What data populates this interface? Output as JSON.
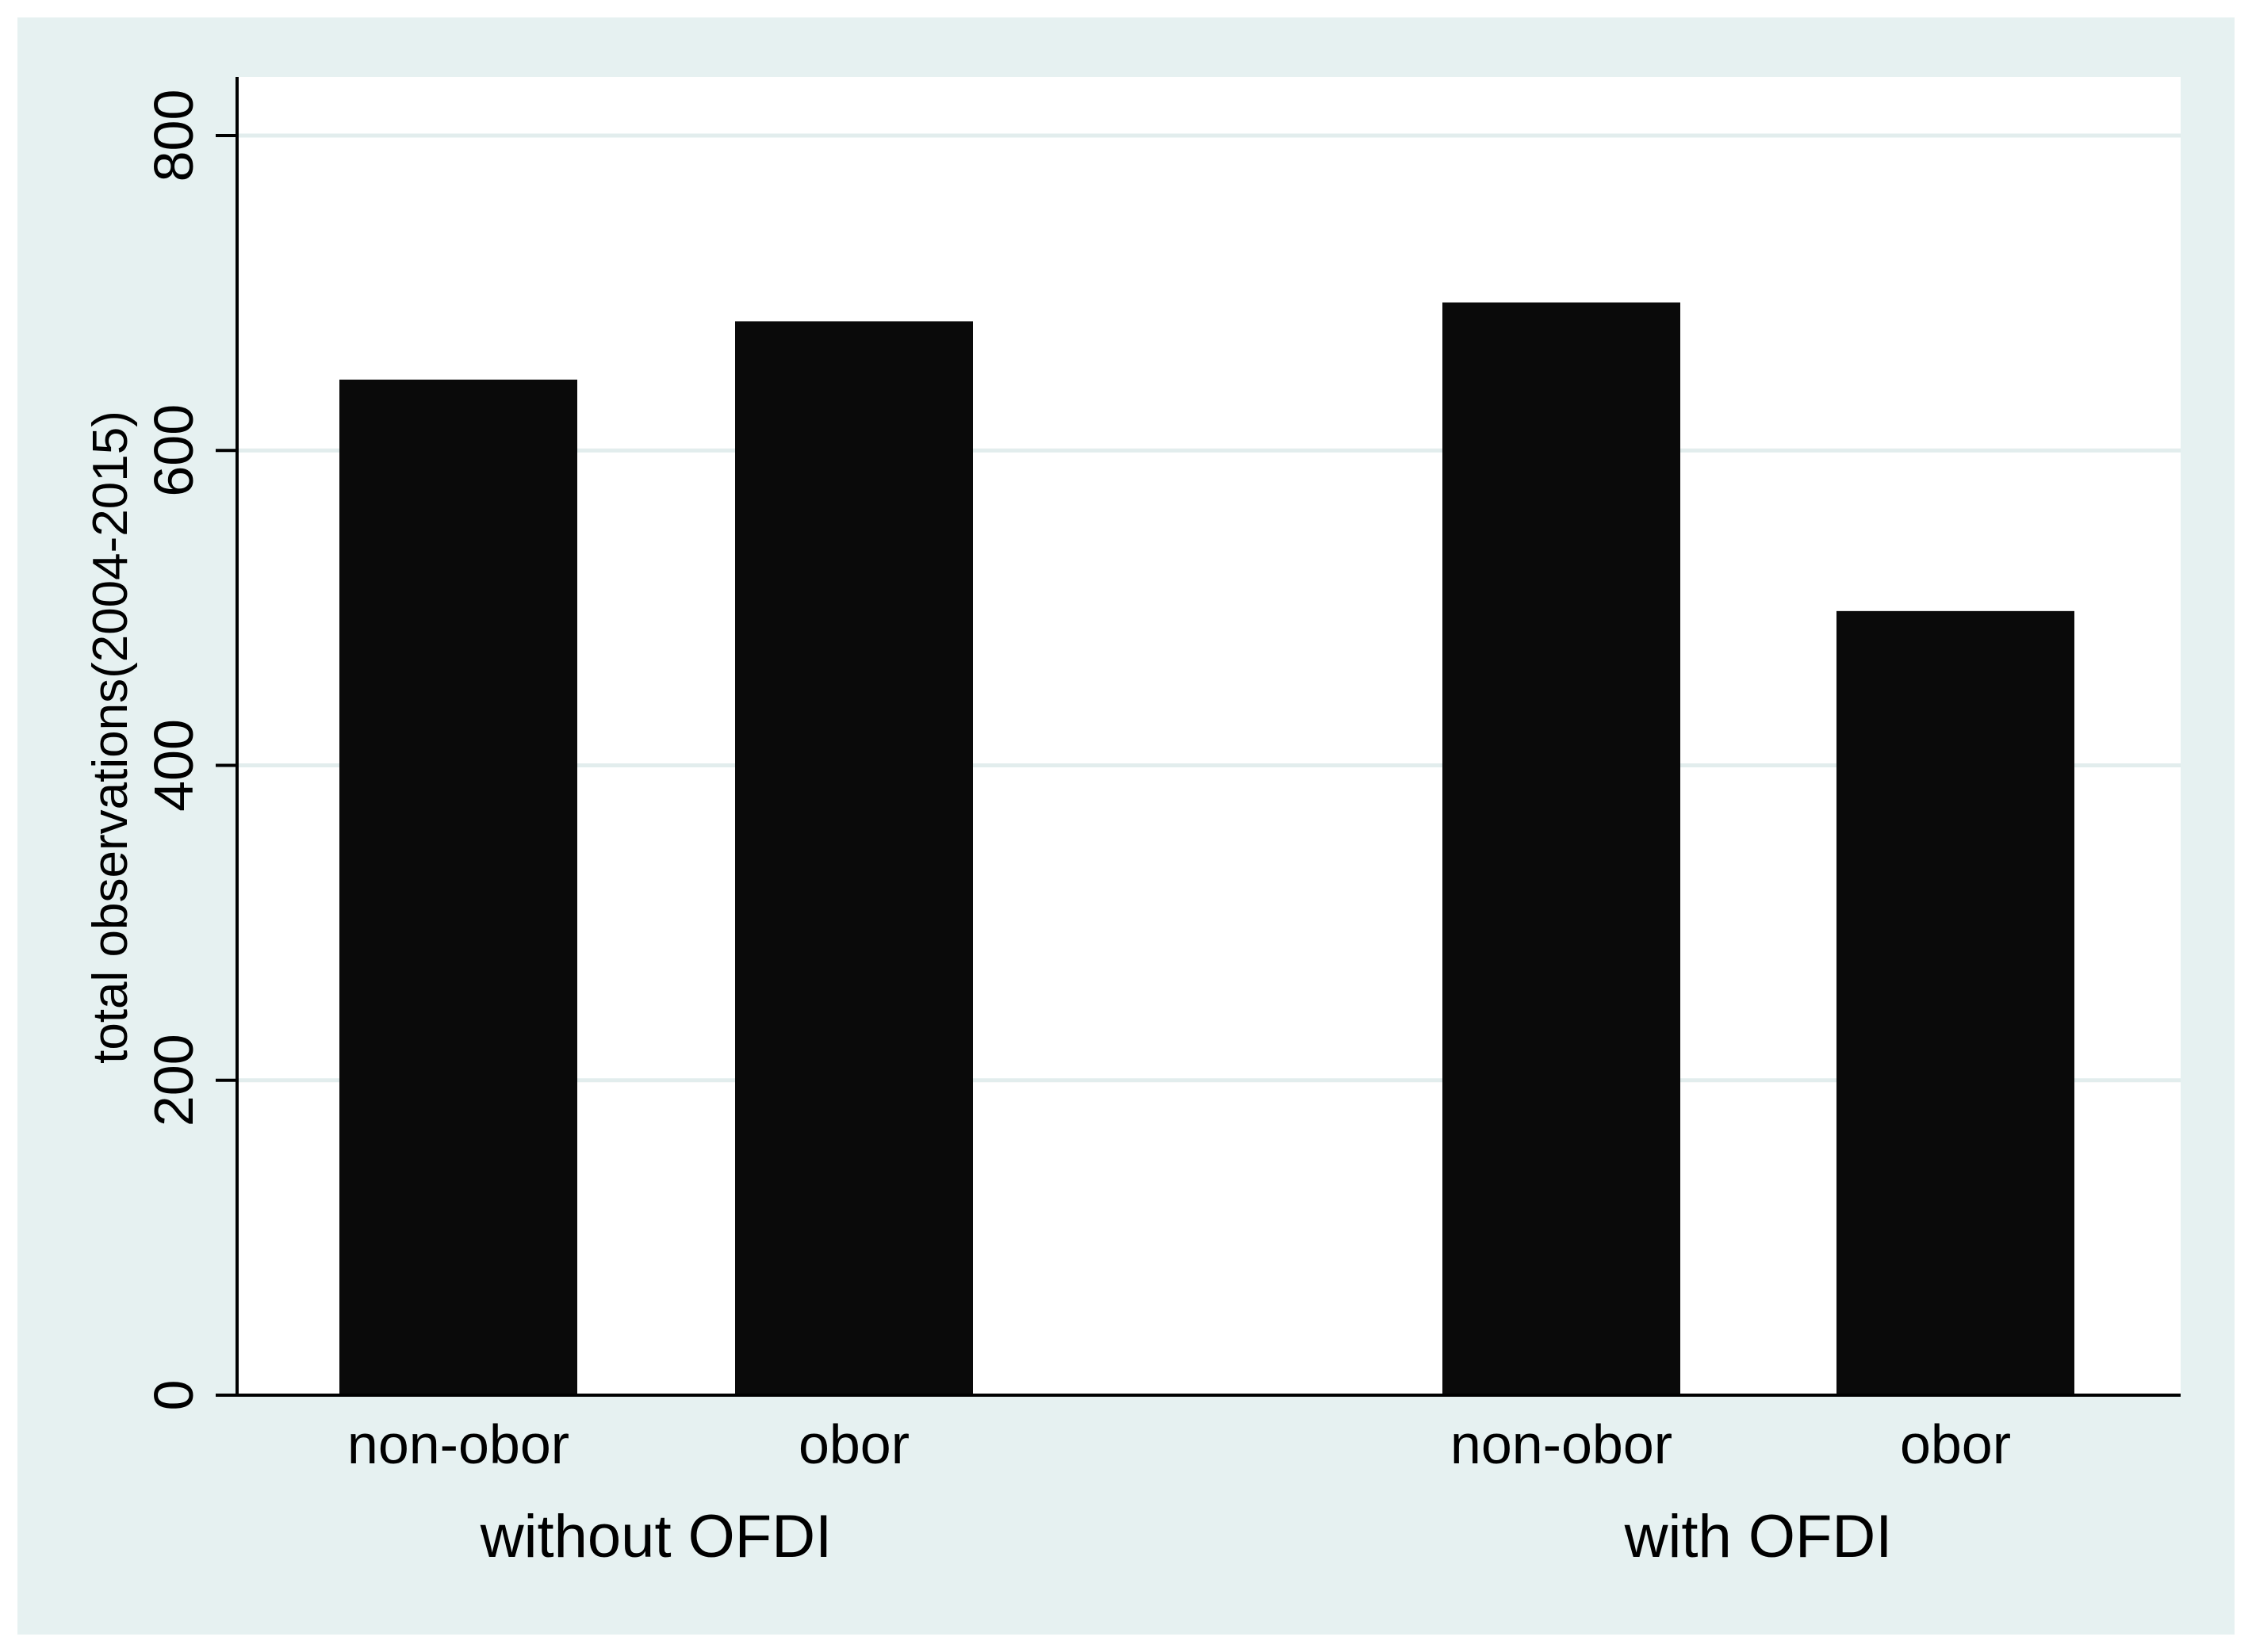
{
  "colors": {
    "outer_background": "#e6f1f1",
    "plot_background": "#ffffff",
    "bar_fill": "#0a0a0a",
    "gridline": "#e2eded",
    "axis": "#000000"
  },
  "chart_data": {
    "type": "bar",
    "title": "",
    "ylabel": "total observations(2004-2015)",
    "xlabel": "",
    "ylim": [
      0,
      840
    ],
    "yticks": [
      0,
      200,
      400,
      600,
      800
    ],
    "grid": true,
    "legend": "none",
    "groups": [
      {
        "label": "without OFDI",
        "categories": [
          "non-obor",
          "obor"
        ],
        "values": [
          645,
          682
        ]
      },
      {
        "label": "with OFDI",
        "categories": [
          "non-obor",
          "obor"
        ],
        "values": [
          694,
          498
        ]
      }
    ]
  }
}
